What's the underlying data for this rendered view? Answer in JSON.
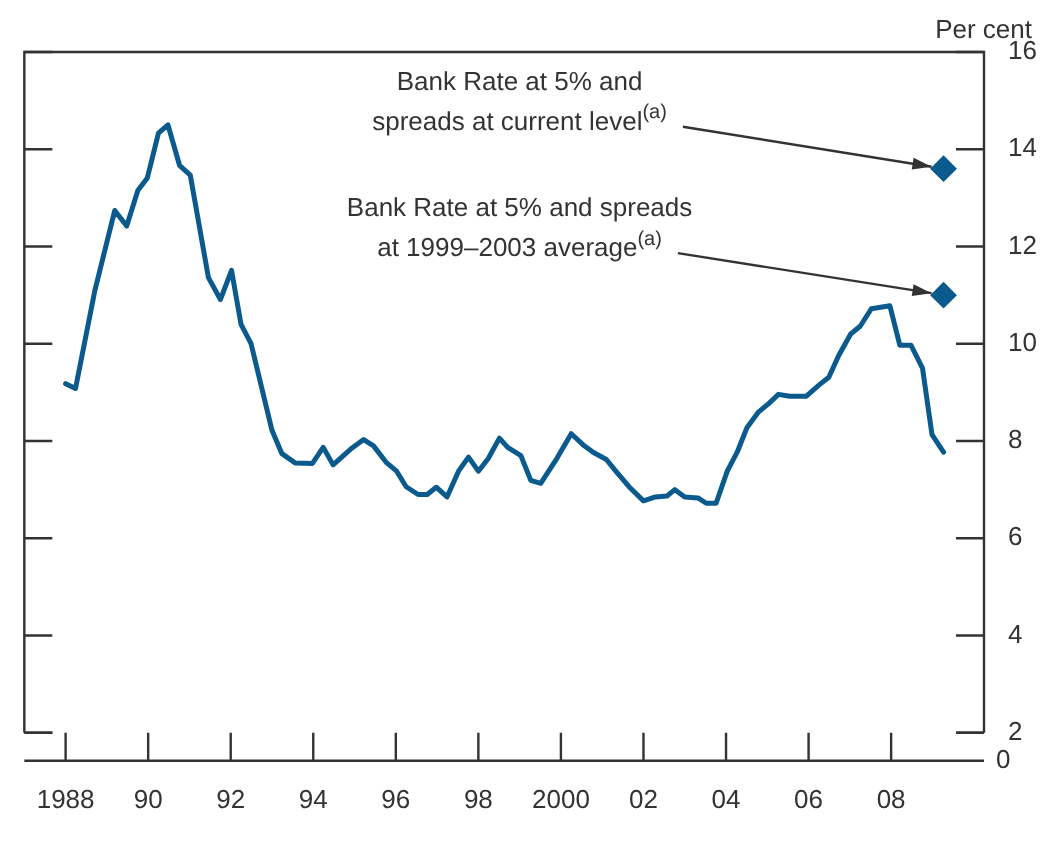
{
  "chart_data": {
    "type": "line",
    "ylabel": "Per cent",
    "xlim": [
      1987,
      2010.25
    ],
    "ylim": [
      2,
      16
    ],
    "xticks": [
      {
        "value": 1988,
        "label": "1988"
      },
      {
        "value": 1990,
        "label": "90"
      },
      {
        "value": 1992,
        "label": "92"
      },
      {
        "value": 1994,
        "label": "94"
      },
      {
        "value": 1996,
        "label": "96"
      },
      {
        "value": 1998,
        "label": "98"
      },
      {
        "value": 2000,
        "label": "2000"
      },
      {
        "value": 2002,
        "label": "02"
      },
      {
        "value": 2004,
        "label": "04"
      },
      {
        "value": 2006,
        "label": "06"
      },
      {
        "value": 2008,
        "label": "08"
      }
    ],
    "yticks": [
      2,
      4,
      6,
      8,
      10,
      12,
      14,
      16
    ],
    "legend": false,
    "series": [
      {
        "type": "line",
        "color": "#0b5a8e",
        "marker": "none",
        "line_style": "solid",
        "x": [
          1988.0,
          1988.24,
          1988.71,
          1989.19,
          1989.48,
          1989.75,
          1989.98,
          1990.25,
          1990.48,
          1990.76,
          1991.02,
          1991.46,
          1991.75,
          1992.02,
          1992.25,
          1992.49,
          1993.0,
          1993.24,
          1993.56,
          1993.98,
          1994.24,
          1994.48,
          1994.9,
          1995.22,
          1995.46,
          1995.78,
          1996.02,
          1996.25,
          1996.54,
          1996.76,
          1996.98,
          1997.24,
          1997.52,
          1997.76,
          1998.0,
          1998.24,
          1998.51,
          1998.71,
          1999.03,
          1999.27,
          1999.51,
          1999.9,
          2000.25,
          2000.54,
          2000.78,
          2001.1,
          2001.33,
          2001.65,
          2002.0,
          2002.29,
          2002.57,
          2002.76,
          2003.0,
          2003.32,
          2003.52,
          2003.76,
          2004.03,
          2004.27,
          2004.51,
          2004.79,
          2005.02,
          2005.27,
          2005.54,
          2005.94,
          2006.25,
          2006.49,
          2006.73,
          2007.02,
          2007.25,
          2007.52,
          2007.97,
          2008.21,
          2008.48,
          2008.76,
          2008.99,
          2009.27
        ],
        "values": [
          9.18,
          9.08,
          11.1,
          12.74,
          12.42,
          13.15,
          13.41,
          14.33,
          14.5,
          13.67,
          13.47,
          11.36,
          10.91,
          11.51,
          10.4,
          10.01,
          8.22,
          7.74,
          7.55,
          7.54,
          7.87,
          7.51,
          7.83,
          8.03,
          7.9,
          7.55,
          7.38,
          7.06,
          6.9,
          6.9,
          7.05,
          6.85,
          7.38,
          7.67,
          7.38,
          7.64,
          8.06,
          7.87,
          7.7,
          7.19,
          7.13,
          7.64,
          8.15,
          7.92,
          7.77,
          7.62,
          7.38,
          7.06,
          6.77,
          6.85,
          6.87,
          7.0,
          6.85,
          6.83,
          6.72,
          6.72,
          7.38,
          7.77,
          8.28,
          8.6,
          8.76,
          8.96,
          8.92,
          8.92,
          9.15,
          9.31,
          9.76,
          10.2,
          10.36,
          10.72,
          10.78,
          9.97,
          9.97,
          9.5,
          8.13,
          7.77
        ]
      },
      {
        "type": "scatter",
        "color": "#0b5a8e",
        "marker": "diamond",
        "x": [
          2009.27,
          2009.27
        ],
        "values": [
          13.6,
          11.0
        ]
      }
    ],
    "annotations": [
      {
        "text": "Bank Rate at 5% and\nspreads at current level$^{(a)}$",
        "x": 2009.27,
        "y": 13.6
      },
      {
        "text": "Bank Rate at 5% and spreads\nat 1999–2003 average$^{(a)}$",
        "x": 2009.27,
        "y": 11.0
      },
      "0"
    ]
  }
}
